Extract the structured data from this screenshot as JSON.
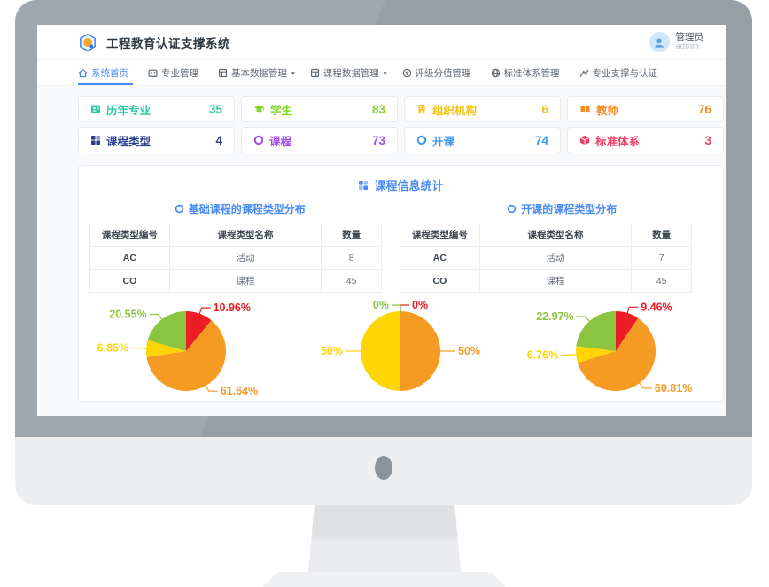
{
  "header": {
    "app_title": "工程教育认证支撑系统",
    "user_name": "管理员",
    "user_id": "admin"
  },
  "nav": {
    "items": [
      {
        "label": "系统首页",
        "caret": ""
      },
      {
        "label": "专业管理",
        "caret": ""
      },
      {
        "label": "基本数据管理",
        "caret": "▾"
      },
      {
        "label": "课程数据管理",
        "caret": "▾"
      },
      {
        "label": "评级分值管理",
        "caret": ""
      },
      {
        "label": "标准体系管理",
        "caret": ""
      },
      {
        "label": "专业支撑与认证",
        "caret": ""
      }
    ]
  },
  "stats": {
    "cards": [
      {
        "label": "历年专业",
        "value": "35",
        "color": "#2bc7a5"
      },
      {
        "label": "学生",
        "value": "83",
        "color": "#82d321"
      },
      {
        "label": "组织机构",
        "value": "6",
        "color": "#f5c311"
      },
      {
        "label": "教师",
        "value": "76",
        "color": "#f58b1f"
      },
      {
        "label": "课程类型",
        "value": "4",
        "color": "#2b3f90"
      },
      {
        "label": "课程",
        "value": "73",
        "color": "#a44ae8"
      },
      {
        "label": "开课",
        "value": "74",
        "color": "#3d97f2"
      },
      {
        "label": "标准体系",
        "value": "3",
        "color": "#ef4067"
      }
    ]
  },
  "panel": {
    "title": "课程信息统计",
    "sections": [
      {
        "subtitle": "基础课程的课程类型分布",
        "table": {
          "headers": [
            "课程类型编号",
            "课程类型名称",
            "数量"
          ],
          "rows": [
            [
              "AC",
              "活动",
              "8"
            ],
            [
              "CO",
              "课程",
              "45"
            ]
          ]
        }
      },
      {
        "subtitle": "开课的课程类型分布",
        "table": {
          "headers": [
            "课程类型编号",
            "课程类型名称",
            "数量"
          ],
          "rows": [
            [
              "AC",
              "活动",
              "7"
            ],
            [
              "CO",
              "课程",
              "45"
            ]
          ]
        }
      }
    ]
  },
  "chart_data": [
    {
      "type": "pie",
      "values": [
        10.96,
        61.64,
        6.85,
        20.55
      ],
      "labels": [
        "10.96%",
        "61.64%",
        "6.85%",
        "20.55%"
      ],
      "colors": [
        "#ee1c24",
        "#f59a23",
        "#ffd503",
        "#8bc53f"
      ],
      "legend_position": "none",
      "note": "slices clockwise from top: red, orange, yellow, green"
    },
    {
      "type": "pie",
      "values": [
        0,
        50,
        50,
        0
      ],
      "labels": [
        "0%",
        "50%",
        "50%",
        "0%"
      ],
      "colors": [
        "#ee1c24",
        "#f59a23",
        "#ffd503",
        "#8bc53f"
      ],
      "legend_position": "none"
    },
    {
      "type": "pie",
      "values": [
        9.46,
        60.81,
        6.76,
        22.97
      ],
      "labels": [
        "9.46%",
        "60.81%",
        "6.76%",
        "22.97%"
      ],
      "colors": [
        "#ee1c24",
        "#f59a23",
        "#ffd503",
        "#8bc53f"
      ],
      "legend_position": "none"
    }
  ]
}
